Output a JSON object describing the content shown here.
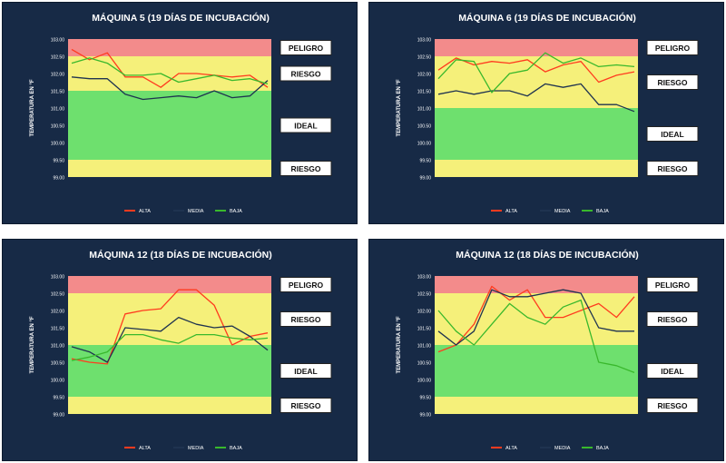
{
  "colors": {
    "panel_bg": "#172a46",
    "zone_peligro": "#f38b8b",
    "zone_riesgo": "#f5f07a",
    "zone_ideal": "#6ee06e",
    "alta": "#ff3b1f",
    "media": "#1f3350",
    "baja": "#39b82c",
    "text": "#ffffff"
  },
  "zone_labels": {
    "peligro": "PELIGRO",
    "riesgo": "RIESGO",
    "ideal": "IDEAL"
  },
  "chart_data": [
    {
      "type": "line",
      "title": "MÁQUINA 5 (19 DÍAS DE INCUBACIÓN)",
      "ylabel": "TEMPERATURA EN °F",
      "ylim": [
        99.0,
        103.0
      ],
      "y_ticks": [
        "99.00",
        "99.50",
        "100.00",
        "100.50",
        "101.00",
        "101.50",
        "102.00",
        "102.50",
        "103.00"
      ],
      "zones": [
        {
          "label": "PELIGRO",
          "from": 102.5,
          "to": 103.0
        },
        {
          "label": "RIESGO",
          "from": 101.5,
          "to": 102.5
        },
        {
          "label": "IDEAL",
          "from": 99.5,
          "to": 101.5
        },
        {
          "label": "RIESGO",
          "from": 99.0,
          "to": 99.5
        }
      ],
      "series": [
        {
          "name": "ALTA",
          "values": [
            102.7,
            102.4,
            102.6,
            101.9,
            101.9,
            101.6,
            102.0,
            102.0,
            101.95,
            101.9,
            101.95,
            101.6
          ]
        },
        {
          "name": "MEDIA",
          "values": [
            101.9,
            101.85,
            101.85,
            101.4,
            101.25,
            101.3,
            101.35,
            101.3,
            101.5,
            101.3,
            101.35,
            101.8
          ]
        },
        {
          "name": "BAJA",
          "values": [
            102.3,
            102.45,
            102.3,
            101.95,
            101.95,
            102.0,
            101.75,
            101.85,
            101.95,
            101.8,
            101.85,
            101.7
          ]
        }
      ]
    },
    {
      "type": "line",
      "title": "MÁQUINA 6 (19 DÍAS DE INCUBACIÓN)",
      "ylabel": "TEMPERATURA EN °F",
      "ylim": [
        99.0,
        103.0
      ],
      "y_ticks": [
        "99.00",
        "99.50",
        "100.00",
        "100.50",
        "101.00",
        "101.50",
        "102.00",
        "102.50",
        "103.00"
      ],
      "zones": [
        {
          "label": "PELIGRO",
          "from": 102.5,
          "to": 103.0
        },
        {
          "label": "RIESGO",
          "from": 101.0,
          "to": 102.5
        },
        {
          "label": "IDEAL",
          "from": 99.5,
          "to": 101.0
        },
        {
          "label": "RIESGO",
          "from": 99.0,
          "to": 99.5
        }
      ],
      "series": [
        {
          "name": "ALTA",
          "values": [
            102.1,
            102.45,
            102.25,
            102.35,
            102.3,
            102.4,
            102.05,
            102.25,
            102.35,
            101.75,
            101.95,
            102.05
          ]
        },
        {
          "name": "MEDIA",
          "values": [
            101.4,
            101.5,
            101.4,
            101.5,
            101.5,
            101.35,
            101.7,
            101.6,
            101.7,
            101.1,
            101.1,
            100.9
          ]
        },
        {
          "name": "BAJA",
          "values": [
            101.85,
            102.4,
            102.35,
            101.45,
            102.0,
            102.1,
            102.6,
            102.3,
            102.45,
            102.2,
            102.25,
            102.2
          ]
        }
      ]
    },
    {
      "type": "line",
      "title": "MÁQUINA 12 (18 DÍAS DE INCUBACIÓN)",
      "ylabel": "TEMPERATURA EN °F",
      "ylim": [
        99.0,
        103.0
      ],
      "y_ticks": [
        "99.00",
        "99.50",
        "100.00",
        "100.50",
        "101.00",
        "101.50",
        "102.00",
        "102.50",
        "103.00"
      ],
      "zones": [
        {
          "label": "PELIGRO",
          "from": 102.5,
          "to": 103.0
        },
        {
          "label": "RIESGO",
          "from": 101.0,
          "to": 102.5
        },
        {
          "label": "IDEAL",
          "from": 99.5,
          "to": 101.0
        },
        {
          "label": "RIESGO",
          "from": 99.0,
          "to": 99.5
        }
      ],
      "series": [
        {
          "name": "ALTA",
          "values": [
            100.6,
            100.5,
            100.45,
            101.9,
            102.0,
            102.05,
            102.6,
            102.6,
            102.15,
            101.0,
            101.25,
            101.35
          ]
        },
        {
          "name": "MEDIA",
          "values": [
            100.95,
            100.8,
            100.5,
            101.5,
            101.45,
            101.4,
            101.8,
            101.6,
            101.5,
            101.55,
            101.25,
            100.85
          ]
        },
        {
          "name": "BAJA",
          "values": [
            100.55,
            100.65,
            100.8,
            101.3,
            101.3,
            101.15,
            101.05,
            101.3,
            101.3,
            101.2,
            101.15,
            101.2
          ]
        }
      ]
    },
    {
      "type": "line",
      "title": "MÁQUINA 12 (18 DÍAS DE INCUBACIÓN)",
      "ylabel": "TEMPERATURA EN °F",
      "ylim": [
        99.0,
        103.0
      ],
      "y_ticks": [
        "99.00",
        "99.50",
        "100.00",
        "100.50",
        "101.00",
        "101.50",
        "102.00",
        "102.50",
        "103.00"
      ],
      "zones": [
        {
          "label": "PELIGRO",
          "from": 102.5,
          "to": 103.0
        },
        {
          "label": "RIESGO",
          "from": 101.0,
          "to": 102.5
        },
        {
          "label": "IDEAL",
          "from": 99.5,
          "to": 101.0
        },
        {
          "label": "RIESGO",
          "from": 99.0,
          "to": 99.5
        }
      ],
      "series": [
        {
          "name": "ALTA",
          "values": [
            100.8,
            101.0,
            101.6,
            102.7,
            102.3,
            102.6,
            101.8,
            101.8,
            102.0,
            102.2,
            101.8,
            102.4
          ]
        },
        {
          "name": "MEDIA",
          "values": [
            101.4,
            101.0,
            101.4,
            102.6,
            102.4,
            102.4,
            102.5,
            102.6,
            102.5,
            101.5,
            101.4,
            101.4
          ]
        },
        {
          "name": "BAJA",
          "values": [
            102.0,
            101.4,
            101.0,
            101.6,
            102.2,
            101.8,
            101.6,
            102.1,
            102.3,
            100.5,
            100.4,
            100.2
          ]
        }
      ]
    }
  ]
}
